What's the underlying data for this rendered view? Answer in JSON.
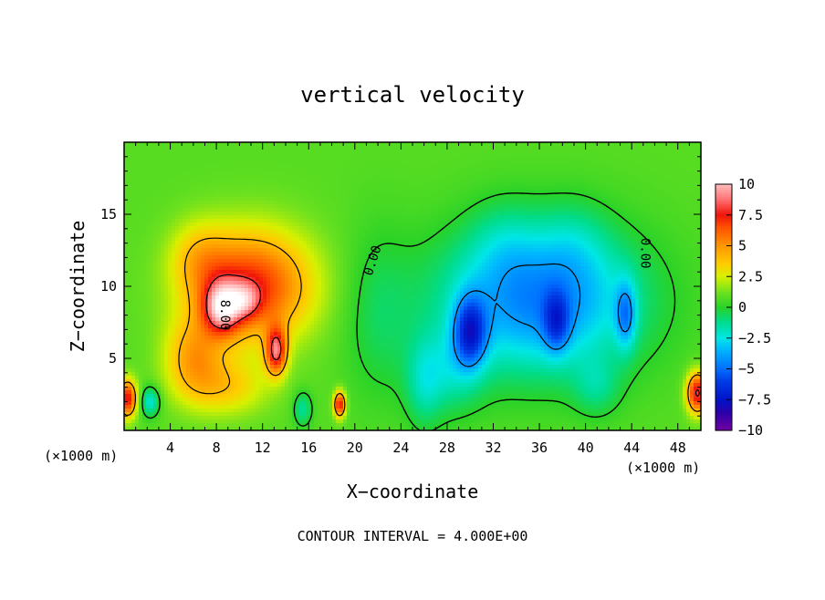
{
  "chart_data": {
    "type": "heatmap",
    "title": "vertical velocity",
    "xlabel": "X−coordinate",
    "ylabel": "Z−coordinate",
    "x_unit_left": "(×1000 m)",
    "x_unit_right": "(×1000 m)",
    "xlim": [
      0,
      50
    ],
    "ylim": [
      0,
      20
    ],
    "x_ticks": [
      4,
      8,
      12,
      16,
      20,
      24,
      28,
      32,
      36,
      40,
      44,
      48
    ],
    "y_ticks": [
      5,
      10,
      15
    ],
    "colorbar": {
      "min": -10,
      "max": 10,
      "tick_values": [
        10,
        7.5,
        5,
        2.5,
        0,
        -2.5,
        -5,
        -7.5,
        -10
      ],
      "tick_labels": [
        "10",
        "7.5",
        "5",
        "2.5",
        "0",
        "−2.5",
        "−5",
        "−7.5",
        "−10"
      ]
    },
    "contour_interval_text": "CONTOUR INTERVAL = 4.000E+00",
    "contour_labels": [
      "0.00",
      "8.00",
      "0.00"
    ],
    "field_features": [
      {
        "name": "updraft core",
        "x": 9,
        "z": 8.5,
        "value": 14
      },
      {
        "name": "updraft lobe",
        "x": 13,
        "z": 5.5,
        "value": 12
      },
      {
        "name": "updraft region",
        "x": 11,
        "z": 10,
        "value": 7
      },
      {
        "name": "downdraft core",
        "x": 30,
        "z": 7,
        "value": -10
      },
      {
        "name": "downdraft core",
        "x": 37.5,
        "z": 7,
        "value": -8
      },
      {
        "name": "downdraft region",
        "x": 36,
        "z": 9,
        "value": -5.5
      },
      {
        "name": "downdraft lobe",
        "x": 43.5,
        "z": 8,
        "value": -7
      },
      {
        "name": "edge updraft",
        "x": 0.5,
        "z": 2,
        "value": 8
      },
      {
        "name": "edge updraft",
        "x": 49.5,
        "z": 2.5,
        "value": 8
      },
      {
        "name": "small updraft",
        "x": 18.7,
        "z": 1.8,
        "value": 8
      }
    ]
  }
}
